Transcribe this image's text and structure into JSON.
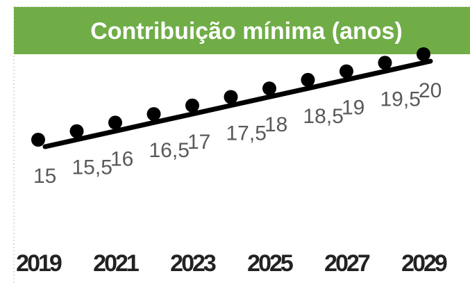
{
  "chart_data": {
    "type": "scatter",
    "title": "Contribuição mínima (anos)",
    "categories": [
      "2019",
      null,
      "2021",
      null,
      "2023",
      null,
      "2025",
      null,
      "2027",
      null,
      "2029"
    ],
    "values": [
      15,
      15.5,
      16,
      16.5,
      17,
      17.5,
      18,
      18.5,
      19,
      19.5,
      20
    ],
    "value_labels": [
      "15",
      "15,5",
      "16",
      "16,5",
      "17",
      "17,5",
      "18",
      "18,5",
      "19",
      "19,5",
      "20"
    ],
    "color": "#000000",
    "trendline": true
  }
}
